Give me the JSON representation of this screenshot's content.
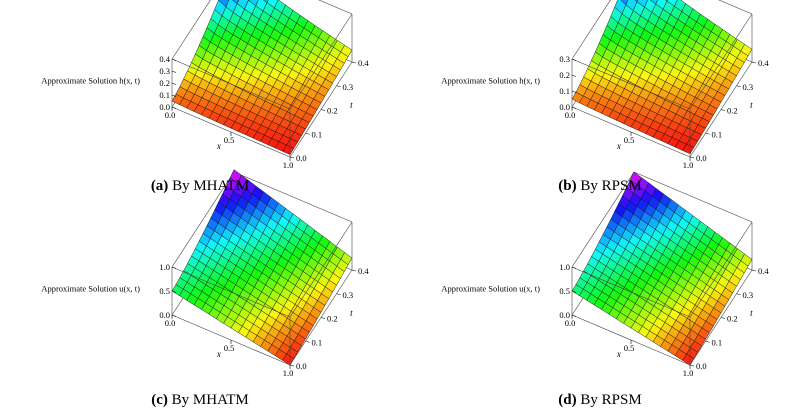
{
  "figure": {
    "panels": [
      {
        "caption_letter": "(a)",
        "caption_text": "By MHATM",
        "chart_data": {
          "type": "surface3d",
          "zlabel": "Approximate Solution h(x, t)",
          "xlabel": "x",
          "ylabel": "t",
          "xlim": [
            0.0,
            1.0
          ],
          "ylim": [
            0.0,
            0.4
          ],
          "zlim": [
            0.0,
            0.4
          ],
          "x_ticks": [
            "0.0",
            "0.5",
            "1.0"
          ],
          "t_ticks": [
            "0.0",
            "0.1",
            "0.2",
            "0.3",
            "0.4"
          ],
          "z_ticks": [
            "0.0",
            "0.1",
            "0.2",
            "0.3",
            "0.4"
          ],
          "function": "h",
          "corner_values": {
            "x0_t0": 0.05,
            "x1_t0": 0.02,
            "x0_t04": 0.42,
            "x1_t04": 0.1
          },
          "colormap": "rainbow"
        }
      },
      {
        "caption_letter": "(b)",
        "caption_text": "By RPSM",
        "chart_data": {
          "type": "surface3d",
          "zlabel": "Approximate Solution h(x, t)",
          "xlabel": "x",
          "ylabel": "t",
          "xlim": [
            0.0,
            1.0
          ],
          "ylim": [
            0.0,
            0.4
          ],
          "zlim": [
            0.0,
            0.3
          ],
          "x_ticks": [
            "0.0",
            "0.5",
            "1.0"
          ],
          "t_ticks": [
            "0.0",
            "0.1",
            "0.2",
            "0.3",
            "0.4"
          ],
          "z_ticks": [
            "0.0",
            "0.1",
            "0.2",
            "0.3"
          ],
          "function": "h",
          "corner_values": {
            "x0_t0": 0.05,
            "x1_t0": 0.02,
            "x0_t04": 0.33,
            "x1_t04": 0.08
          },
          "colormap": "rainbow"
        }
      },
      {
        "caption_letter": "(c)",
        "caption_text": "By MHATM",
        "chart_data": {
          "type": "surface3d",
          "zlabel": "Approximate Solution u(x, t)",
          "xlabel": "x",
          "ylabel": "t",
          "xlim": [
            0.0,
            1.0
          ],
          "ylim": [
            0.0,
            0.4
          ],
          "zlim": [
            0.0,
            1.0
          ],
          "x_ticks": [
            "0.0",
            "0.5",
            "1.0"
          ],
          "t_ticks": [
            "0.0",
            "0.1",
            "0.2",
            "0.3",
            "0.4"
          ],
          "z_ticks": [
            "0.0",
            "0.5",
            "1.0"
          ],
          "function": "u",
          "corner_values": {
            "x0_t0": 0.5,
            "x1_t0": 0.0,
            "x0_t04": 1.05,
            "x1_t04": 0.25
          },
          "colormap": "rainbow"
        }
      },
      {
        "caption_letter": "(d)",
        "caption_text": "By RPSM",
        "chart_data": {
          "type": "surface3d",
          "zlabel": "Approximate Solution  u(x, t)",
          "xlabel": "x",
          "ylabel": "t",
          "xlim": [
            0.0,
            1.0
          ],
          "ylim": [
            0.0,
            0.4
          ],
          "zlim": [
            0.0,
            1.0
          ],
          "x_ticks": [
            "0.0",
            "0.5",
            "1.0"
          ],
          "t_ticks": [
            "0.0",
            "0.1",
            "0.2",
            "0.3",
            "0.4"
          ],
          "z_ticks": [
            "0.0",
            "0.5",
            "1.0"
          ],
          "function": "u",
          "corner_values": {
            "x0_t0": 0.5,
            "x1_t0": 0.0,
            "x0_t04": 1.0,
            "x1_t04": 0.22
          },
          "colormap": "rainbow"
        }
      }
    ]
  }
}
